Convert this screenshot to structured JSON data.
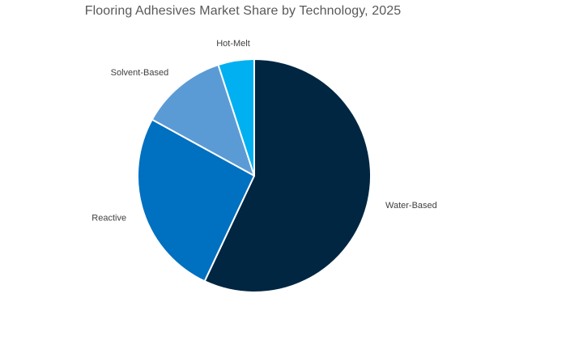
{
  "chart_data": {
    "type": "pie",
    "title": "Flooring Adhesives Market Share by Technology, 2025",
    "start_angle_deg": 0,
    "direction": "clockwise",
    "legend": "none",
    "slices": [
      {
        "label": "Water-Based",
        "value": 57,
        "color": "#002642"
      },
      {
        "label": "Reactive",
        "value": 26,
        "color": "#0070C0"
      },
      {
        "label": "Solvent-Based",
        "value": 12,
        "color": "#5B9BD5"
      },
      {
        "label": "Hot-Melt",
        "value": 5,
        "color": "#00B0F0"
      }
    ]
  }
}
